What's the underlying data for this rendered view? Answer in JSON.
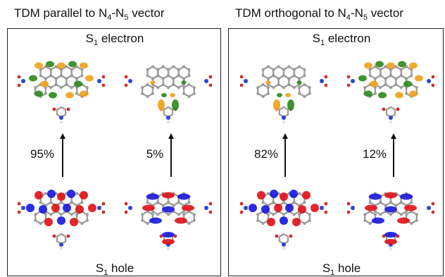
{
  "panels": [
    {
      "heading_text": "TDM parallel to N",
      "heading_sub1": "4",
      "heading_mid": "-N",
      "heading_sub2": "5",
      "heading_end": " vector",
      "electron_label": "S",
      "electron_sub": "1",
      "electron_word": " electron",
      "hole_label": "S",
      "hole_sub": "1",
      "hole_word": " hole",
      "transitions": [
        {
          "percent": "95%",
          "electron_lobe": "edges",
          "hole_lobe": "core"
        },
        {
          "percent": "5%",
          "electron_lobe": "bottom",
          "hole_lobe": "horizontal"
        }
      ]
    },
    {
      "heading_text": "TDM orthogonal to N",
      "heading_sub1": "4",
      "heading_mid": "-N",
      "heading_sub2": "5",
      "heading_end": " vector",
      "electron_label": "S",
      "electron_sub": "1",
      "electron_word": " electron",
      "hole_label": "S",
      "hole_sub": "1",
      "hole_word": " hole",
      "transitions": [
        {
          "percent": "82%",
          "electron_lobe": "bottom",
          "hole_lobe": "core"
        },
        {
          "percent": "12%",
          "electron_lobe": "edges",
          "hole_lobe": "horizontal"
        }
      ]
    }
  ],
  "colors": {
    "electron_positive": "#f0a21e",
    "electron_negative": "#2f8a1f",
    "hole_positive": "#e0141a",
    "hole_negative": "#1a1ae0",
    "carbon": "#9a9a9a",
    "nitrogen": "#2a44d8",
    "oxygen": "#d82a2a",
    "hydrogen": "#f4f4f4"
  }
}
